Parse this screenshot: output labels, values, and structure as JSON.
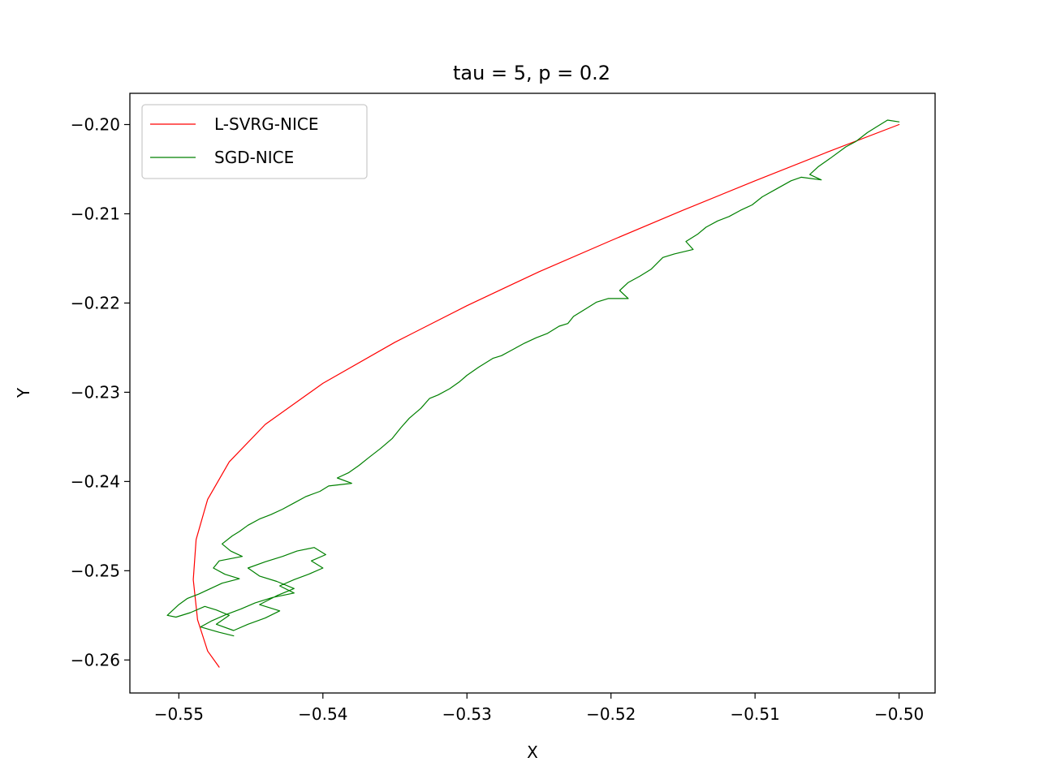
{
  "chart_data": {
    "type": "line",
    "title": "tau = 5, p = 0.2",
    "xlabel": "X",
    "ylabel": "Y",
    "xlim": [
      -0.5534,
      -0.4975
    ],
    "ylim": [
      -0.2637,
      -0.1965
    ],
    "xticks": [
      -0.55,
      -0.54,
      -0.53,
      -0.52,
      -0.51,
      -0.5
    ],
    "yticks": [
      -0.26,
      -0.25,
      -0.24,
      -0.23,
      -0.22,
      -0.21,
      -0.2
    ],
    "xtick_labels": [
      "−0.55",
      "−0.54",
      "−0.53",
      "−0.52",
      "−0.51",
      "−0.50"
    ],
    "ytick_labels": [
      "−0.26",
      "−0.25",
      "−0.24",
      "−0.23",
      "−0.22",
      "−0.21",
      "−0.20"
    ],
    "grid": false,
    "legend": "upper-left",
    "series": [
      {
        "name": "L-SVRG-NICE",
        "color": "#ff0000",
        "points": [
          [
            -0.5,
            -0.2
          ],
          [
            -0.505,
            -0.2031
          ],
          [
            -0.51,
            -0.2063
          ],
          [
            -0.515,
            -0.2096
          ],
          [
            -0.52,
            -0.213
          ],
          [
            -0.525,
            -0.2165
          ],
          [
            -0.53,
            -0.2203
          ],
          [
            -0.535,
            -0.2244
          ],
          [
            -0.54,
            -0.229
          ],
          [
            -0.544,
            -0.2336
          ],
          [
            -0.5465,
            -0.2378
          ],
          [
            -0.548,
            -0.242
          ],
          [
            -0.5488,
            -0.2465
          ],
          [
            -0.549,
            -0.251
          ],
          [
            -0.5487,
            -0.2555
          ],
          [
            -0.548,
            -0.259
          ],
          [
            -0.5472,
            -0.2608
          ]
        ]
      },
      {
        "name": "SGD-NICE",
        "color": "#008000",
        "points": [
          [
            -0.5,
            -0.1997
          ],
          [
            -0.5008,
            -0.1995
          ],
          [
            -0.5016,
            -0.2003
          ],
          [
            -0.5022,
            -0.2009
          ],
          [
            -0.503,
            -0.2019
          ],
          [
            -0.5037,
            -0.2025
          ],
          [
            -0.5048,
            -0.2038
          ],
          [
            -0.5056,
            -0.2047
          ],
          [
            -0.5062,
            -0.2056
          ],
          [
            -0.5054,
            -0.2062
          ],
          [
            -0.5068,
            -0.2059
          ],
          [
            -0.5075,
            -0.2063
          ],
          [
            -0.5085,
            -0.2072
          ],
          [
            -0.5095,
            -0.2081
          ],
          [
            -0.5102,
            -0.209
          ],
          [
            -0.511,
            -0.2096
          ],
          [
            -0.5118,
            -0.2103
          ],
          [
            -0.5126,
            -0.2108
          ],
          [
            -0.5134,
            -0.2115
          ],
          [
            -0.514,
            -0.2123
          ],
          [
            -0.5148,
            -0.2131
          ],
          [
            -0.5143,
            -0.214
          ],
          [
            -0.5156,
            -0.2145
          ],
          [
            -0.5164,
            -0.2149
          ],
          [
            -0.5172,
            -0.2162
          ],
          [
            -0.518,
            -0.217
          ],
          [
            -0.5188,
            -0.2177
          ],
          [
            -0.5194,
            -0.2186
          ],
          [
            -0.5188,
            -0.2195
          ],
          [
            -0.5202,
            -0.2195
          ],
          [
            -0.521,
            -0.2199
          ],
          [
            -0.5218,
            -0.2207
          ],
          [
            -0.5226,
            -0.2215
          ],
          [
            -0.523,
            -0.2223
          ],
          [
            -0.5236,
            -0.2226
          ],
          [
            -0.5244,
            -0.2234
          ],
          [
            -0.5252,
            -0.2239
          ],
          [
            -0.526,
            -0.2245
          ],
          [
            -0.5268,
            -0.2252
          ],
          [
            -0.5276,
            -0.2259
          ],
          [
            -0.5282,
            -0.2262
          ],
          [
            -0.5292,
            -0.2272
          ],
          [
            -0.53,
            -0.2281
          ],
          [
            -0.5305,
            -0.2288
          ],
          [
            -0.5312,
            -0.2296
          ],
          [
            -0.532,
            -0.2303
          ],
          [
            -0.5326,
            -0.2307
          ],
          [
            -0.5332,
            -0.2318
          ],
          [
            -0.534,
            -0.2329
          ],
          [
            -0.5346,
            -0.234
          ],
          [
            -0.5352,
            -0.2352
          ],
          [
            -0.536,
            -0.2363
          ],
          [
            -0.5368,
            -0.2373
          ],
          [
            -0.5375,
            -0.2382
          ],
          [
            -0.5382,
            -0.239
          ],
          [
            -0.539,
            -0.2396
          ],
          [
            -0.538,
            -0.2402
          ],
          [
            -0.5396,
            -0.2405
          ],
          [
            -0.5402,
            -0.2411
          ],
          [
            -0.5412,
            -0.2417
          ],
          [
            -0.542,
            -0.2424
          ],
          [
            -0.5428,
            -0.2431
          ],
          [
            -0.5436,
            -0.2437
          ],
          [
            -0.5444,
            -0.2442
          ],
          [
            -0.5452,
            -0.2449
          ],
          [
            -0.5458,
            -0.2456
          ],
          [
            -0.5463,
            -0.2461
          ],
          [
            -0.547,
            -0.247
          ],
          [
            -0.5464,
            -0.2478
          ],
          [
            -0.5456,
            -0.2484
          ],
          [
            -0.5472,
            -0.2489
          ],
          [
            -0.5476,
            -0.2497
          ],
          [
            -0.5468,
            -0.2504
          ],
          [
            -0.5458,
            -0.2509
          ],
          [
            -0.547,
            -0.2514
          ],
          [
            -0.5478,
            -0.252
          ],
          [
            -0.5486,
            -0.2526
          ],
          [
            -0.5494,
            -0.2531
          ],
          [
            -0.55,
            -0.2538
          ],
          [
            -0.5508,
            -0.255
          ],
          [
            -0.5502,
            -0.2552
          ],
          [
            -0.5492,
            -0.2547
          ],
          [
            -0.5482,
            -0.254
          ],
          [
            -0.5474,
            -0.2544
          ],
          [
            -0.5465,
            -0.255
          ],
          [
            -0.5474,
            -0.256
          ],
          [
            -0.5462,
            -0.2567
          ],
          [
            -0.5452,
            -0.256
          ],
          [
            -0.544,
            -0.2553
          ],
          [
            -0.543,
            -0.2545
          ],
          [
            -0.5444,
            -0.2538
          ],
          [
            -0.5432,
            -0.2528
          ],
          [
            -0.542,
            -0.252
          ],
          [
            -0.5432,
            -0.2512
          ],
          [
            -0.5444,
            -0.2506
          ],
          [
            -0.5452,
            -0.2497
          ],
          [
            -0.544,
            -0.249
          ],
          [
            -0.5428,
            -0.2484
          ],
          [
            -0.5418,
            -0.2478
          ],
          [
            -0.5406,
            -0.2474
          ],
          [
            -0.5398,
            -0.2482
          ],
          [
            -0.5408,
            -0.2489
          ],
          [
            -0.54,
            -0.2497
          ],
          [
            -0.541,
            -0.2504
          ],
          [
            -0.542,
            -0.251
          ],
          [
            -0.543,
            -0.2517
          ],
          [
            -0.542,
            -0.2525
          ],
          [
            -0.5435,
            -0.253
          ],
          [
            -0.5447,
            -0.2536
          ],
          [
            -0.5457,
            -0.2543
          ],
          [
            -0.5467,
            -0.2549
          ],
          [
            -0.5477,
            -0.2556
          ],
          [
            -0.5485,
            -0.2563
          ],
          [
            -0.5472,
            -0.2569
          ],
          [
            -0.5462,
            -0.2573
          ]
        ]
      }
    ]
  }
}
